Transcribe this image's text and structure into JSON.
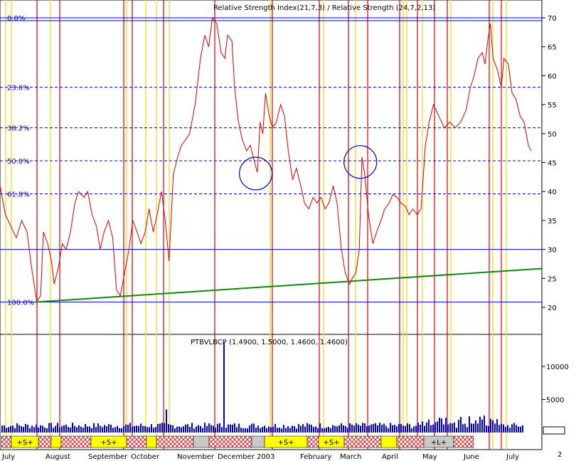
{
  "colors": {
    "background": "#ffffff",
    "price_line": "#dd0000",
    "volume": "#0000dd",
    "fib_lines": "#0000cc",
    "trend_line": "#118811",
    "red_vertical": "#dd0000",
    "yellow_vertical": "#f0e040",
    "band_yellow": "#ffff00",
    "band_grey": "#c8c8c8",
    "band_hatch": "#dd0000"
  },
  "chart_data": [
    {
      "type": "line",
      "title": "Relative Strength Index(21,7,3) / Relative Strength (24,7,2,13)",
      "ylim": [
        20,
        70
      ],
      "y_ticks": [
        20,
        25,
        30,
        35,
        40,
        45,
        50,
        55,
        60,
        65,
        70
      ],
      "fib_levels": [
        {
          "label": "0.0%",
          "value": 70
        },
        {
          "label": "23.6%",
          "value": 58
        },
        {
          "label": "38.2%",
          "value": 51
        },
        {
          "label": "50.0%",
          "value": 45.3
        },
        {
          "label": "61.8%",
          "value": 39.6
        },
        {
          "label": "100.0%",
          "value": 20.9
        }
      ],
      "horizontal_line": 30,
      "trend_line": {
        "from": [
          0.065,
          20.9
        ],
        "to": [
          1.0,
          26.7
        ]
      },
      "circles": [
        {
          "x": 0.472,
          "y": 43.1,
          "label": "low circle"
        },
        {
          "x": 0.665,
          "y": 45.1,
          "label": "high circle"
        }
      ],
      "series": [
        {
          "values": [
            [
              0.0,
              41
            ],
            [
              0.01,
              36
            ],
            [
              0.02,
              34
            ],
            [
              0.03,
              32
            ],
            [
              0.04,
              35
            ],
            [
              0.05,
              33
            ],
            [
              0.058,
              27
            ],
            [
              0.063,
              24
            ],
            [
              0.068,
              21
            ],
            [
              0.075,
              22
            ],
            [
              0.08,
              33
            ],
            [
              0.088,
              31
            ],
            [
              0.095,
              28
            ],
            [
              0.1,
              24
            ],
            [
              0.108,
              27
            ],
            [
              0.115,
              31
            ],
            [
              0.122,
              30
            ],
            [
              0.13,
              33
            ],
            [
              0.138,
              38
            ],
            [
              0.145,
              40
            ],
            [
              0.155,
              39
            ],
            [
              0.162,
              40
            ],
            [
              0.17,
              36
            ],
            [
              0.178,
              34
            ],
            [
              0.185,
              30
            ],
            [
              0.192,
              33
            ],
            [
              0.2,
              35
            ],
            [
              0.208,
              32
            ],
            [
              0.215,
              23
            ],
            [
              0.222,
              22
            ],
            [
              0.23,
              26
            ],
            [
              0.238,
              30
            ],
            [
              0.245,
              35
            ],
            [
              0.253,
              33
            ],
            [
              0.26,
              31
            ],
            [
              0.268,
              33
            ],
            [
              0.275,
              37
            ],
            [
              0.283,
              33
            ],
            [
              0.29,
              36
            ],
            [
              0.298,
              40
            ],
            [
              0.305,
              35
            ],
            [
              0.312,
              28
            ],
            [
              0.32,
              43
            ],
            [
              0.328,
              46
            ],
            [
              0.335,
              48
            ],
            [
              0.343,
              49
            ],
            [
              0.35,
              50
            ],
            [
              0.36,
              55
            ],
            [
              0.37,
              63
            ],
            [
              0.378,
              67
            ],
            [
              0.385,
              65
            ],
            [
              0.392,
              70
            ],
            [
              0.4,
              69
            ],
            [
              0.408,
              64
            ],
            [
              0.415,
              63
            ],
            [
              0.42,
              67
            ],
            [
              0.428,
              66
            ],
            [
              0.433,
              58
            ],
            [
              0.44,
              52
            ],
            [
              0.447,
              49
            ],
            [
              0.455,
              47
            ],
            [
              0.462,
              48
            ],
            [
              0.47,
              45
            ],
            [
              0.475,
              43.3
            ],
            [
              0.48,
              52
            ],
            [
              0.485,
              50
            ],
            [
              0.49,
              57
            ],
            [
              0.497,
              53
            ],
            [
              0.503,
              51
            ],
            [
              0.51,
              52
            ],
            [
              0.518,
              55
            ],
            [
              0.525,
              53
            ],
            [
              0.532,
              47
            ],
            [
              0.54,
              42
            ],
            [
              0.547,
              44
            ],
            [
              0.555,
              41
            ],
            [
              0.562,
              38
            ],
            [
              0.57,
              37
            ],
            [
              0.578,
              39
            ],
            [
              0.585,
              38
            ],
            [
              0.592,
              39
            ],
            [
              0.6,
              37
            ],
            [
              0.607,
              38
            ],
            [
              0.615,
              41
            ],
            [
              0.622,
              38
            ],
            [
              0.63,
              30
            ],
            [
              0.637,
              26
            ],
            [
              0.645,
              24
            ],
            [
              0.65,
              25
            ],
            [
              0.657,
              26
            ],
            [
              0.663,
              30
            ],
            [
              0.668,
              46
            ],
            [
              0.673,
              43
            ],
            [
              0.68,
              36
            ],
            [
              0.688,
              31
            ],
            [
              0.695,
              33
            ],
            [
              0.703,
              35
            ],
            [
              0.71,
              37
            ],
            [
              0.718,
              38
            ],
            [
              0.725,
              39.5
            ],
            [
              0.733,
              39
            ],
            [
              0.74,
              38
            ],
            [
              0.748,
              37.5
            ],
            [
              0.755,
              36
            ],
            [
              0.762,
              37
            ],
            [
              0.77,
              36
            ],
            [
              0.777,
              37
            ],
            [
              0.785,
              48
            ],
            [
              0.792,
              52
            ],
            [
              0.8,
              55
            ],
            [
              0.81,
              53
            ],
            [
              0.82,
              51
            ],
            [
              0.83,
              52
            ],
            [
              0.84,
              51
            ],
            [
              0.85,
              52
            ],
            [
              0.86,
              54
            ],
            [
              0.868,
              58
            ],
            [
              0.875,
              60
            ],
            [
              0.882,
              63
            ],
            [
              0.89,
              64
            ],
            [
              0.895,
              62
            ],
            [
              0.9,
              66
            ],
            [
              0.905,
              69
            ],
            [
              0.91,
              63
            ],
            [
              0.918,
              61
            ],
            [
              0.925,
              58
            ],
            [
              0.93,
              63
            ],
            [
              0.938,
              62
            ],
            [
              0.945,
              57
            ],
            [
              0.952,
              56
            ],
            [
              0.96,
              53
            ],
            [
              0.967,
              52
            ],
            [
              0.975,
              48
            ],
            [
              0.98,
              47
            ]
          ]
        }
      ]
    },
    {
      "type": "bar",
      "title": "PTBVLBCP (1.4900, 1.5000, 1.4600, 1.4600)",
      "ylim": [
        0,
        14000
      ],
      "y_ticks": [
        5000,
        10000
      ],
      "spikes": [
        {
          "x": 0.307,
          "value": 3500
        },
        {
          "x": 0.413,
          "value": 13700
        }
      ],
      "base_level": 600
    }
  ],
  "legend_note": "2",
  "x_labels": [
    "July",
    "August",
    "September",
    "October",
    "November",
    "December",
    "2003",
    "February",
    "March",
    "April",
    "May",
    "June",
    "July"
  ],
  "bands": [
    {
      "kind": "hatch",
      "text": ""
    },
    {
      "kind": "yellow",
      "text": "+S+"
    },
    {
      "kind": "hatch",
      "text": ""
    },
    {
      "kind": "yellow",
      "text": ""
    },
    {
      "kind": "hatch",
      "text": ""
    },
    {
      "kind": "yellow",
      "text": "+S+"
    },
    {
      "kind": "hatch",
      "text": ""
    },
    {
      "kind": "yellow",
      "text": ""
    },
    {
      "kind": "hatch",
      "text": ""
    },
    {
      "kind": "grey",
      "text": ""
    },
    {
      "kind": "hatch",
      "text": ""
    },
    {
      "kind": "grey",
      "text": ""
    },
    {
      "kind": "yellow",
      "text": "+S+"
    },
    {
      "kind": "hatch",
      "text": ""
    },
    {
      "kind": "yellow",
      "text": "+S+"
    },
    {
      "kind": "hatch",
      "text": ""
    },
    {
      "kind": "yellow",
      "text": ""
    },
    {
      "kind": "hatch",
      "text": ""
    },
    {
      "kind": "grey",
      "text": "+L+"
    },
    {
      "kind": "hatch",
      "text": ""
    }
  ]
}
